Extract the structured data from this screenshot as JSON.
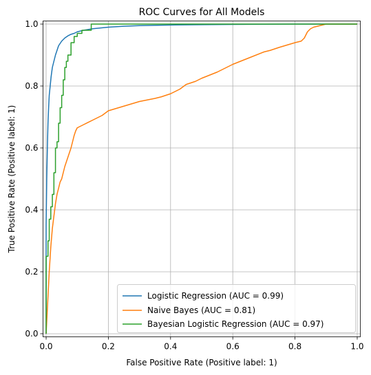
{
  "chart_data": {
    "type": "line",
    "title": "ROC Curves for All Models",
    "xlabel": "False Positive Rate (Positive label: 1)",
    "ylabel": "True Positive Rate (Positive label: 1)",
    "xlim": [
      -0.01,
      1.01
    ],
    "ylim": [
      -0.01,
      1.01
    ],
    "xticks": [
      0.0,
      0.2,
      0.4,
      0.6,
      0.8,
      1.0
    ],
    "xtick_labels": [
      "0.0",
      "0.2",
      "0.4",
      "0.6",
      "0.8",
      "1.0"
    ],
    "yticks": [
      0.0,
      0.2,
      0.4,
      0.6,
      0.8,
      1.0
    ],
    "ytick_labels": [
      "0.0",
      "0.2",
      "0.4",
      "0.6",
      "0.8",
      "1.0"
    ],
    "grid": true,
    "legend_position": "lower-right",
    "series": [
      {
        "name": "Logistic Regression (AUC = 0.99)",
        "color": "#1f77b4",
        "step": false,
        "x": [
          0.0,
          0.0,
          0.002,
          0.004,
          0.006,
          0.008,
          0.01,
          0.013,
          0.016,
          0.02,
          0.025,
          0.03,
          0.035,
          0.04,
          0.05,
          0.06,
          0.07,
          0.08,
          0.09,
          0.1,
          0.12,
          0.15,
          0.2,
          0.25,
          0.3,
          0.4,
          0.5,
          0.6,
          0.7,
          0.8,
          0.9,
          1.0
        ],
        "y": [
          0.0,
          0.35,
          0.5,
          0.6,
          0.68,
          0.73,
          0.77,
          0.8,
          0.83,
          0.86,
          0.88,
          0.9,
          0.915,
          0.93,
          0.945,
          0.955,
          0.962,
          0.967,
          0.97,
          0.975,
          0.98,
          0.985,
          0.99,
          0.993,
          0.995,
          0.997,
          0.998,
          0.999,
          0.9995,
          1.0,
          1.0,
          1.0
        ]
      },
      {
        "name": "Naive Bayes (AUC = 0.81)",
        "color": "#ff7f0e",
        "step": false,
        "x": [
          0.0,
          0.005,
          0.01,
          0.015,
          0.02,
          0.025,
          0.03,
          0.035,
          0.04,
          0.045,
          0.05,
          0.055,
          0.06,
          0.065,
          0.07,
          0.075,
          0.08,
          0.085,
          0.09,
          0.095,
          0.1,
          0.12,
          0.15,
          0.18,
          0.2,
          0.25,
          0.3,
          0.35,
          0.37,
          0.4,
          0.43,
          0.45,
          0.48,
          0.5,
          0.55,
          0.6,
          0.65,
          0.7,
          0.72,
          0.75,
          0.8,
          0.82,
          0.83,
          0.84,
          0.85,
          0.86,
          0.88,
          0.9,
          1.0
        ],
        "y": [
          0.0,
          0.1,
          0.2,
          0.28,
          0.34,
          0.38,
          0.42,
          0.45,
          0.47,
          0.49,
          0.5,
          0.52,
          0.54,
          0.555,
          0.57,
          0.585,
          0.6,
          0.62,
          0.64,
          0.655,
          0.665,
          0.675,
          0.69,
          0.705,
          0.72,
          0.735,
          0.75,
          0.76,
          0.765,
          0.775,
          0.79,
          0.805,
          0.815,
          0.825,
          0.845,
          0.87,
          0.89,
          0.91,
          0.915,
          0.925,
          0.94,
          0.945,
          0.955,
          0.975,
          0.985,
          0.99,
          0.995,
          1.0,
          1.0
        ]
      },
      {
        "name": "Bayesian Logistic Regression (AUC = 0.97)",
        "color": "#2ca02c",
        "step": true,
        "x": [
          0.0,
          0.0,
          0.006,
          0.01,
          0.015,
          0.02,
          0.025,
          0.03,
          0.035,
          0.04,
          0.045,
          0.05,
          0.055,
          0.06,
          0.065,
          0.07,
          0.08,
          0.09,
          0.1,
          0.115,
          0.145,
          0.145,
          1.0
        ],
        "y": [
          0.0,
          0.25,
          0.3,
          0.37,
          0.41,
          0.45,
          0.52,
          0.6,
          0.62,
          0.68,
          0.73,
          0.77,
          0.82,
          0.86,
          0.88,
          0.9,
          0.94,
          0.96,
          0.97,
          0.98,
          0.98,
          1.0,
          1.0
        ]
      }
    ]
  }
}
